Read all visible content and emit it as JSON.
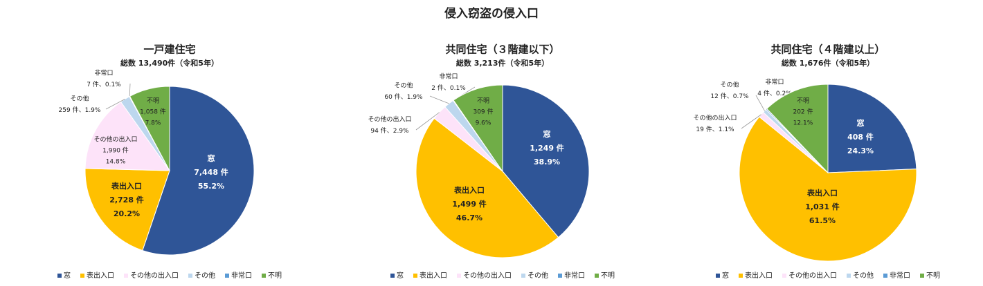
{
  "title": "侵入窃盗の侵入口",
  "chart_data": [
    {
      "type": "pie",
      "title": "一戸建住宅",
      "subtitle": "総数 13,490件（令和5年）",
      "categories": [
        "窓",
        "表出入口",
        "その他の出入口",
        "その他",
        "非常口",
        "不明"
      ],
      "colors": [
        "#2f5597",
        "#ffc000",
        "#fde3f9",
        "#bdd7ee",
        "#5b9bd5",
        "#70ad47"
      ],
      "values": [
        55.2,
        20.2,
        14.8,
        1.9,
        0.1,
        7.8
      ],
      "value_labels": [
        "55.2%",
        "20.2%",
        "14.8%",
        "1.9%",
        "0.1%",
        "7.8%"
      ],
      "count_labels": [
        "7,448 件",
        "2,728 件",
        "1,990 件",
        "259 件",
        "7 件",
        "1,058 件"
      ],
      "label_separator": "、"
    },
    {
      "type": "pie",
      "title": "共同住宅（３階建以下）",
      "subtitle": "総数 3,213件（令和5年）",
      "categories": [
        "窓",
        "表出入口",
        "その他の出入口",
        "その他",
        "非常口",
        "不明"
      ],
      "colors": [
        "#2f5597",
        "#ffc000",
        "#fde3f9",
        "#bdd7ee",
        "#5b9bd5",
        "#70ad47"
      ],
      "values": [
        38.9,
        46.7,
        2.9,
        1.9,
        0.1,
        9.6
      ],
      "value_labels": [
        "38.9%",
        "46.7%",
        "2.9%",
        "1.9%",
        "0.1%",
        "9.6%"
      ],
      "count_labels": [
        "1,249 件",
        "1,499 件",
        "94 件",
        "60 件",
        "2 件",
        "309 件"
      ],
      "label_separator": "、"
    },
    {
      "type": "pie",
      "title": "共同住宅（４階建以上）",
      "subtitle": "総数 1,676件（令和5年）",
      "categories": [
        "窓",
        "表出入口",
        "その他の出入口",
        "その他",
        "非常口",
        "不明"
      ],
      "colors": [
        "#2f5597",
        "#ffc000",
        "#fde3f9",
        "#bdd7ee",
        "#5b9bd5",
        "#70ad47"
      ],
      "values": [
        24.3,
        61.5,
        1.1,
        0.7,
        0.2,
        12.1
      ],
      "value_labels": [
        "24.3%",
        "61.5%",
        "1.1%",
        "0.7%",
        "0.2%",
        "12.1%"
      ],
      "count_labels": [
        "408 件",
        "1,031 件",
        "19 件",
        "12 件",
        "4 件",
        "202 件"
      ],
      "label_separator": "、"
    }
  ]
}
